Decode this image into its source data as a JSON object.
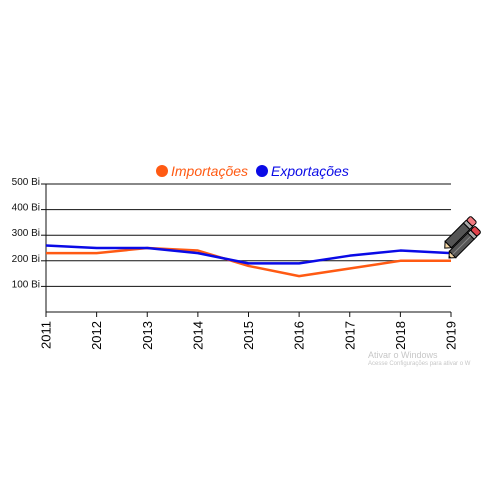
{
  "chart_data": {
    "type": "line",
    "categories": [
      "2011",
      "2012",
      "2013",
      "2014",
      "2015",
      "2016",
      "2017",
      "2018",
      "2019"
    ],
    "series": [
      {
        "name": "Importações",
        "color": "#ff5a13",
        "values": [
          230,
          230,
          250,
          240,
          180,
          140,
          170,
          200,
          200
        ]
      },
      {
        "name": "Exportações",
        "color": "#0a0ae6",
        "values": [
          260,
          250,
          250,
          230,
          190,
          190,
          220,
          240,
          230
        ]
      }
    ],
    "ylim": [
      0,
      500
    ],
    "yticks": [
      {
        "value": 100,
        "label": "100 Bi"
      },
      {
        "value": 200,
        "label": "200 Bi"
      },
      {
        "value": 300,
        "label": "300 Bi"
      },
      {
        "value": 400,
        "label": "400 Bi"
      },
      {
        "value": 500,
        "label": "500 Bi"
      }
    ],
    "grid": true,
    "legend": "top-center",
    "title": "",
    "xlabel": "",
    "ylabel": ""
  },
  "decor": {
    "pencil_icon": "pencil-icon"
  },
  "watermark": {
    "title": "Ativar o Windows",
    "subtitle": "Acesse Configurações para ativar o W"
  }
}
